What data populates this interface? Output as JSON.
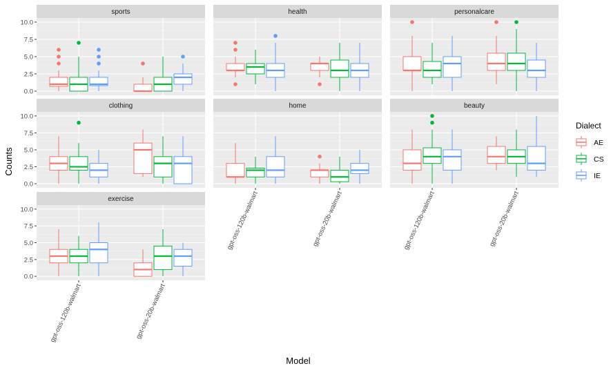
{
  "chart_data": {
    "type": "boxplot",
    "facet_by": "category",
    "xlabel": "Model",
    "ylabel": "Counts",
    "ylim": [
      -0.6,
      10.6
    ],
    "y_ticks": [
      "0.0",
      "2.5",
      "5.0",
      "7.5",
      "10.0"
    ],
    "y_tick_values": [
      0,
      2.5,
      5,
      7.5,
      10
    ],
    "categories": [
      "gpt-oss-120b-walmart",
      "gpt-oss-20b-walmart"
    ],
    "colors": {
      "AE": "#F8766D",
      "CS": "#00BA38",
      "IE": "#619CFF"
    },
    "legend": {
      "title": "Dialect",
      "position": "right",
      "entries": [
        "AE",
        "CS",
        "IE"
      ]
    },
    "grid": true,
    "panels": [
      {
        "facet": "sports",
        "boxes": [
          {
            "model": "gpt-oss-120b-walmart",
            "dialect": "AE",
            "min": 0,
            "q1": 0.7,
            "median": 1,
            "q3": 2,
            "max": 3,
            "outliers": [
              4,
              5,
              6
            ]
          },
          {
            "model": "gpt-oss-120b-walmart",
            "dialect": "CS",
            "min": 0,
            "q1": 0,
            "median": 1,
            "q3": 2,
            "max": 5,
            "outliers": [
              7
            ]
          },
          {
            "model": "gpt-oss-120b-walmart",
            "dialect": "IE",
            "min": 0,
            "q1": 0.8,
            "median": 1,
            "q3": 2,
            "max": 3,
            "outliers": [
              4,
              5,
              6
            ]
          },
          {
            "model": "gpt-oss-20b-walmart",
            "dialect": "AE",
            "min": 0,
            "q1": 0,
            "median": 0,
            "q3": 1,
            "max": 2,
            "outliers": [
              4
            ]
          },
          {
            "model": "gpt-oss-20b-walmart",
            "dialect": "CS",
            "min": 0,
            "q1": 0,
            "median": 1,
            "q3": 2,
            "max": 5,
            "outliers": []
          },
          {
            "model": "gpt-oss-20b-walmart",
            "dialect": "IE",
            "min": 0,
            "q1": 1,
            "median": 2,
            "q3": 2.5,
            "max": 4,
            "outliers": [
              5
            ]
          }
        ]
      },
      {
        "facet": "health",
        "boxes": [
          {
            "model": "gpt-oss-120b-walmart",
            "dialect": "AE",
            "min": 2,
            "q1": 3,
            "median": 3,
            "q3": 4,
            "max": 5,
            "outliers": [
              1,
              6,
              7
            ]
          },
          {
            "model": "gpt-oss-120b-walmart",
            "dialect": "CS",
            "min": 1,
            "q1": 2.5,
            "median": 3.5,
            "q3": 4,
            "max": 6,
            "outliers": []
          },
          {
            "model": "gpt-oss-120b-walmart",
            "dialect": "IE",
            "min": 0,
            "q1": 2,
            "median": 3,
            "q3": 4,
            "max": 7,
            "outliers": [
              8
            ]
          },
          {
            "model": "gpt-oss-20b-walmart",
            "dialect": "AE",
            "min": 2,
            "q1": 3,
            "median": 4,
            "q3": 4,
            "max": 5,
            "outliers": [
              1
            ]
          },
          {
            "model": "gpt-oss-20b-walmart",
            "dialect": "CS",
            "min": 0,
            "q1": 2,
            "median": 3,
            "q3": 4.5,
            "max": 7,
            "outliers": []
          },
          {
            "model": "gpt-oss-20b-walmart",
            "dialect": "IE",
            "min": 0,
            "q1": 2,
            "median": 3,
            "q3": 4,
            "max": 7,
            "outliers": []
          }
        ]
      },
      {
        "facet": "personalcare",
        "boxes": [
          {
            "model": "gpt-oss-120b-walmart",
            "dialect": "AE",
            "min": 0,
            "q1": 3,
            "median": 3,
            "q3": 5,
            "max": 8,
            "outliers": [
              10
            ]
          },
          {
            "model": "gpt-oss-120b-walmart",
            "dialect": "CS",
            "min": 1,
            "q1": 2,
            "median": 3,
            "q3": 4.3,
            "max": 7,
            "outliers": []
          },
          {
            "model": "gpt-oss-120b-walmart",
            "dialect": "IE",
            "min": 0,
            "q1": 2,
            "median": 4,
            "q3": 5,
            "max": 8,
            "outliers": []
          },
          {
            "model": "gpt-oss-20b-walmart",
            "dialect": "AE",
            "min": 1,
            "q1": 3,
            "median": 4,
            "q3": 5.5,
            "max": 8,
            "outliers": [
              10
            ]
          },
          {
            "model": "gpt-oss-20b-walmart",
            "dialect": "CS",
            "min": 0,
            "q1": 3,
            "median": 4,
            "q3": 5.5,
            "max": 9,
            "outliers": [
              10
            ]
          },
          {
            "model": "gpt-oss-20b-walmart",
            "dialect": "IE",
            "min": 0,
            "q1": 2,
            "median": 3,
            "q3": 4.5,
            "max": 7,
            "outliers": []
          }
        ]
      },
      {
        "facet": "clothing",
        "boxes": [
          {
            "model": "gpt-oss-120b-walmart",
            "dialect": "AE",
            "min": 0,
            "q1": 2,
            "median": 3,
            "q3": 4,
            "max": 7,
            "outliers": []
          },
          {
            "model": "gpt-oss-120b-walmart",
            "dialect": "CS",
            "min": 0,
            "q1": 2,
            "median": 2.5,
            "q3": 4,
            "max": 6,
            "outliers": [
              9
            ]
          },
          {
            "model": "gpt-oss-120b-walmart",
            "dialect": "IE",
            "min": 0,
            "q1": 1,
            "median": 2,
            "q3": 3,
            "max": 5,
            "outliers": []
          },
          {
            "model": "gpt-oss-20b-walmart",
            "dialect": "AE",
            "min": 1,
            "q1": 1.5,
            "median": 5,
            "q3": 6,
            "max": 8,
            "outliers": []
          },
          {
            "model": "gpt-oss-20b-walmart",
            "dialect": "CS",
            "min": 0,
            "q1": 1,
            "median": 3,
            "q3": 4,
            "max": 7,
            "outliers": []
          },
          {
            "model": "gpt-oss-20b-walmart",
            "dialect": "IE",
            "min": 0,
            "q1": 0,
            "median": 3,
            "q3": 4,
            "max": 7,
            "outliers": []
          }
        ]
      },
      {
        "facet": "home",
        "boxes": [
          {
            "model": "gpt-oss-120b-walmart",
            "dialect": "AE",
            "min": 0,
            "q1": 1,
            "median": 1,
            "q3": 3,
            "max": 6,
            "outliers": []
          },
          {
            "model": "gpt-oss-120b-walmart",
            "dialect": "CS",
            "min": 0,
            "q1": 1,
            "median": 2,
            "q3": 2.3,
            "max": 4,
            "outliers": []
          },
          {
            "model": "gpt-oss-120b-walmart",
            "dialect": "IE",
            "min": 0,
            "q1": 1,
            "median": 2,
            "q3": 4,
            "max": 7,
            "outliers": []
          },
          {
            "model": "gpt-oss-20b-walmart",
            "dialect": "AE",
            "min": 0,
            "q1": 1,
            "median": 2,
            "q3": 2,
            "max": 3,
            "outliers": [
              4
            ]
          },
          {
            "model": "gpt-oss-20b-walmart",
            "dialect": "CS",
            "min": 0,
            "q1": 0.3,
            "median": 1,
            "q3": 2,
            "max": 4,
            "outliers": []
          },
          {
            "model": "gpt-oss-20b-walmart",
            "dialect": "IE",
            "min": 0,
            "q1": 1.5,
            "median": 2,
            "q3": 3,
            "max": 5,
            "outliers": []
          }
        ]
      },
      {
        "facet": "beauty",
        "boxes": [
          {
            "model": "gpt-oss-120b-walmart",
            "dialect": "AE",
            "min": 0,
            "q1": 2,
            "median": 3,
            "q3": 5,
            "max": 8,
            "outliers": []
          },
          {
            "model": "gpt-oss-120b-walmart",
            "dialect": "CS",
            "min": 0,
            "q1": 3,
            "median": 4,
            "q3": 5.3,
            "max": 8,
            "outliers": [
              9,
              10
            ]
          },
          {
            "model": "gpt-oss-120b-walmart",
            "dialect": "IE",
            "min": 0,
            "q1": 2,
            "median": 4,
            "q3": 5,
            "max": 8,
            "outliers": []
          },
          {
            "model": "gpt-oss-20b-walmart",
            "dialect": "AE",
            "min": 2,
            "q1": 3,
            "median": 4,
            "q3": 5.5,
            "max": 7,
            "outliers": []
          },
          {
            "model": "gpt-oss-20b-walmart",
            "dialect": "CS",
            "min": 1,
            "q1": 3,
            "median": 4,
            "q3": 5,
            "max": 8,
            "outliers": []
          },
          {
            "model": "gpt-oss-20b-walmart",
            "dialect": "IE",
            "min": 1,
            "q1": 2,
            "median": 3,
            "q3": 5.5,
            "max": 10,
            "outliers": []
          }
        ]
      },
      {
        "facet": "exercise",
        "boxes": [
          {
            "model": "gpt-oss-120b-walmart",
            "dialect": "AE",
            "min": 0,
            "q1": 2,
            "median": 3,
            "q3": 4,
            "max": 7,
            "outliers": []
          },
          {
            "model": "gpt-oss-120b-walmart",
            "dialect": "CS",
            "min": 0,
            "q1": 2,
            "median": 3,
            "q3": 4,
            "max": 6,
            "outliers": []
          },
          {
            "model": "gpt-oss-120b-walmart",
            "dialect": "IE",
            "min": 0,
            "q1": 2,
            "median": 4,
            "q3": 5,
            "max": 8,
            "outliers": []
          },
          {
            "model": "gpt-oss-20b-walmart",
            "dialect": "AE",
            "min": 0,
            "q1": 0,
            "median": 1,
            "q3": 2,
            "max": 4,
            "outliers": []
          },
          {
            "model": "gpt-oss-20b-walmart",
            "dialect": "CS",
            "min": 0,
            "q1": 1,
            "median": 3,
            "q3": 4.5,
            "max": 7,
            "outliers": []
          },
          {
            "model": "gpt-oss-20b-walmart",
            "dialect": "IE",
            "min": 0,
            "q1": 1.5,
            "median": 3,
            "q3": 4,
            "max": 5,
            "outliers": []
          }
        ]
      }
    ]
  }
}
